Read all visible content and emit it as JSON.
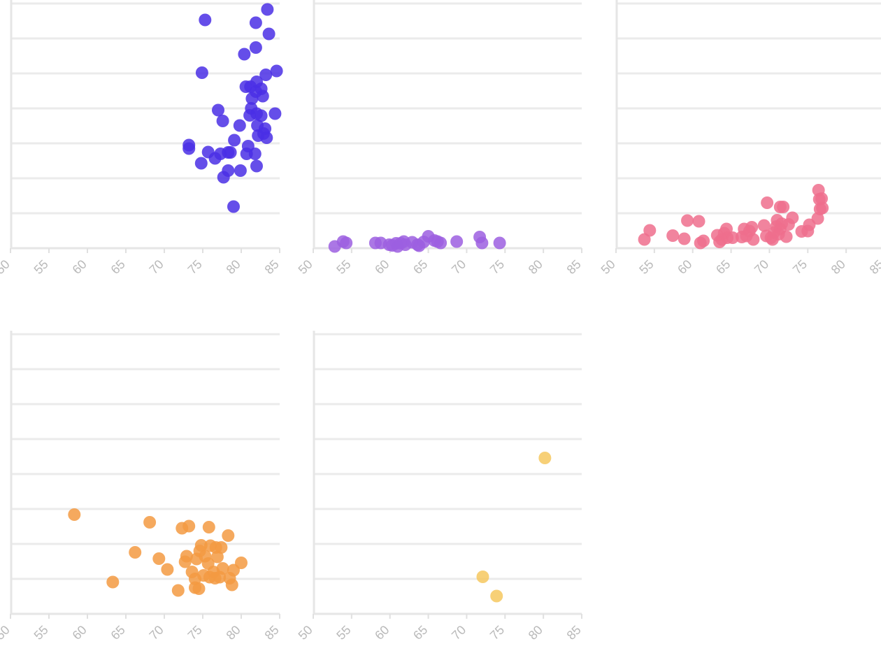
{
  "chart_data": [
    {
      "type": "scatter",
      "color": "#4a2fe5",
      "xlim": [
        50,
        85
      ],
      "x_ticks": [
        "50",
        "55",
        "60",
        "65",
        "70",
        "75",
        "80",
        "85"
      ],
      "ylim": [
        0,
        7
      ],
      "grid": true,
      "points": [
        [
          83.4,
          6.83
        ],
        [
          75.3,
          6.53
        ],
        [
          81.9,
          6.45
        ],
        [
          83.6,
          6.13
        ],
        [
          81.9,
          5.74
        ],
        [
          80.4,
          5.55
        ],
        [
          74.9,
          5.02
        ],
        [
          84.6,
          5.07
        ],
        [
          83.2,
          4.96
        ],
        [
          82,
          4.76
        ],
        [
          80.6,
          4.62
        ],
        [
          81.2,
          4.62
        ],
        [
          82.6,
          4.56
        ],
        [
          81.9,
          4.48
        ],
        [
          82.8,
          4.35
        ],
        [
          81.4,
          4.28
        ],
        [
          81.3,
          4.0
        ],
        [
          77,
          3.95
        ],
        [
          81.1,
          3.8
        ],
        [
          82,
          3.85
        ],
        [
          82.6,
          3.79
        ],
        [
          84.4,
          3.85
        ],
        [
          77.6,
          3.64
        ],
        [
          79.8,
          3.51
        ],
        [
          82.1,
          3.51
        ],
        [
          83.1,
          3.42
        ],
        [
          82.9,
          3.28
        ],
        [
          82.2,
          3.22
        ],
        [
          83.3,
          3.16
        ],
        [
          79.1,
          3.09
        ],
        [
          73.2,
          2.95
        ],
        [
          73.2,
          2.85
        ],
        [
          80.9,
          2.92
        ],
        [
          75.7,
          2.75
        ],
        [
          77.3,
          2.7
        ],
        [
          80.7,
          2.7
        ],
        [
          81.8,
          2.7
        ],
        [
          78.3,
          2.74
        ],
        [
          78.6,
          2.74
        ],
        [
          76.6,
          2.57
        ],
        [
          74.8,
          2.43
        ],
        [
          82,
          2.35
        ],
        [
          78.3,
          2.22
        ],
        [
          79.9,
          2.22
        ],
        [
          77.7,
          2.03
        ],
        [
          79,
          1.19
        ]
      ]
    },
    {
      "type": "scatter",
      "color": "#9c5fe0",
      "xlim": [
        50,
        85
      ],
      "x_ticks": [
        "50",
        "55",
        "60",
        "65",
        "70",
        "75",
        "80",
        "85"
      ],
      "ylim": [
        0,
        7
      ],
      "grid": true,
      "points": [
        [
          52.8,
          0.05
        ],
        [
          53.9,
          0.19
        ],
        [
          54.3,
          0.15
        ],
        [
          58.1,
          0.15
        ],
        [
          58.8,
          0.15
        ],
        [
          59.9,
          0.1
        ],
        [
          60.3,
          0.08
        ],
        [
          60.8,
          0.14
        ],
        [
          61,
          0.05
        ],
        [
          61.4,
          0.14
        ],
        [
          61.8,
          0.19
        ],
        [
          62,
          0.1
        ],
        [
          62.9,
          0.17
        ],
        [
          63.6,
          0.1
        ],
        [
          63.8,
          0.07
        ],
        [
          64.4,
          0.18
        ],
        [
          65,
          0.34
        ],
        [
          65.8,
          0.22
        ],
        [
          66.2,
          0.19
        ],
        [
          66.6,
          0.15
        ],
        [
          68.7,
          0.19
        ],
        [
          71.7,
          0.32
        ],
        [
          72,
          0.15
        ],
        [
          74.3,
          0.15
        ]
      ]
    },
    {
      "type": "scatter",
      "color": "#ee6e8d",
      "xlim": [
        50,
        85
      ],
      "x_ticks": [
        "50",
        "55",
        "60",
        "65",
        "70",
        "75",
        "80",
        "85"
      ],
      "ylim": [
        0,
        7
      ],
      "grid": true,
      "points": [
        [
          53.7,
          0.25
        ],
        [
          54.4,
          0.51
        ],
        [
          57.4,
          0.36
        ],
        [
          58.9,
          0.27
        ],
        [
          59.3,
          0.79
        ],
        [
          60.8,
          0.77
        ],
        [
          61,
          0.15
        ],
        [
          61.4,
          0.21
        ],
        [
          63.2,
          0.37
        ],
        [
          63.5,
          0.18
        ],
        [
          63.8,
          0.25
        ],
        [
          64.1,
          0.43
        ],
        [
          64.4,
          0.55
        ],
        [
          64.5,
          0.3
        ],
        [
          65.2,
          0.3
        ],
        [
          66.4,
          0.32
        ],
        [
          66.7,
          0.55
        ],
        [
          67,
          0.35
        ],
        [
          67.4,
          0.49
        ],
        [
          67.7,
          0.6
        ],
        [
          67.9,
          0.25
        ],
        [
          69.3,
          0.65
        ],
        [
          69.6,
          0.35
        ],
        [
          69.7,
          1.3
        ],
        [
          70.2,
          0.3
        ],
        [
          70.4,
          0.25
        ],
        [
          70.6,
          0.45
        ],
        [
          70.9,
          0.62
        ],
        [
          71,
          0.8
        ],
        [
          71.2,
          0.4
        ],
        [
          71.4,
          0.55
        ],
        [
          71.4,
          1.18
        ],
        [
          71.6,
          0.7
        ],
        [
          71.8,
          1.18
        ],
        [
          72.2,
          0.33
        ],
        [
          72.5,
          0.68
        ],
        [
          73,
          0.87
        ],
        [
          74.2,
          0.48
        ],
        [
          75,
          0.49
        ],
        [
          75.2,
          0.67
        ],
        [
          76.4,
          1.66
        ],
        [
          76.5,
          1.4
        ],
        [
          76.8,
          1.42
        ],
        [
          76.9,
          1.15
        ],
        [
          76.6,
          1.12
        ],
        [
          76.3,
          0.85
        ]
      ]
    },
    {
      "type": "scatter",
      "color": "#f39a42",
      "xlim": [
        50,
        85
      ],
      "x_ticks": [
        "50",
        "55",
        "60",
        "65",
        "70",
        "75",
        "80",
        "85"
      ],
      "ylim": [
        0,
        7
      ],
      "grid": true,
      "points": [
        [
          58.3,
          2.84
        ],
        [
          63.3,
          0.91
        ],
        [
          66.2,
          1.76
        ],
        [
          68.1,
          2.62
        ],
        [
          69.3,
          1.58
        ],
        [
          70.4,
          1.27
        ],
        [
          71.8,
          0.67
        ],
        [
          72.3,
          2.45
        ],
        [
          72.9,
          1.65
        ],
        [
          72.7,
          1.49
        ],
        [
          73.2,
          2.51
        ],
        [
          73.6,
          1.2
        ],
        [
          74,
          1.0
        ],
        [
          74,
          0.75
        ],
        [
          74.2,
          1.57
        ],
        [
          74.5,
          0.72
        ],
        [
          74.6,
          1.8
        ],
        [
          74.8,
          1.96
        ],
        [
          75.1,
          1.1
        ],
        [
          75.3,
          1.65
        ],
        [
          75.7,
          1.44
        ],
        [
          75.8,
          2.48
        ],
        [
          75.9,
          1.05
        ],
        [
          76,
          1.95
        ],
        [
          76.4,
          1.2
        ],
        [
          76.6,
          1.02
        ],
        [
          76.7,
          1.9
        ],
        [
          76.9,
          1.63
        ],
        [
          77.2,
          1.05
        ],
        [
          77.4,
          1.9
        ],
        [
          77.6,
          1.3
        ],
        [
          78.3,
          2.24
        ],
        [
          78.5,
          1.02
        ],
        [
          78.8,
          0.83
        ],
        [
          79,
          1.25
        ],
        [
          80,
          1.46
        ]
      ]
    },
    {
      "type": "scatter",
      "color": "#f6c85f",
      "xlim": [
        50,
        85
      ],
      "x_ticks": [
        "50",
        "55",
        "60",
        "65",
        "70",
        "75",
        "80",
        "85"
      ],
      "ylim": [
        0,
        7
      ],
      "grid": true,
      "points": [
        [
          80.2,
          4.46
        ],
        [
          72.1,
          1.06
        ],
        [
          73.9,
          0.51
        ]
      ]
    }
  ]
}
